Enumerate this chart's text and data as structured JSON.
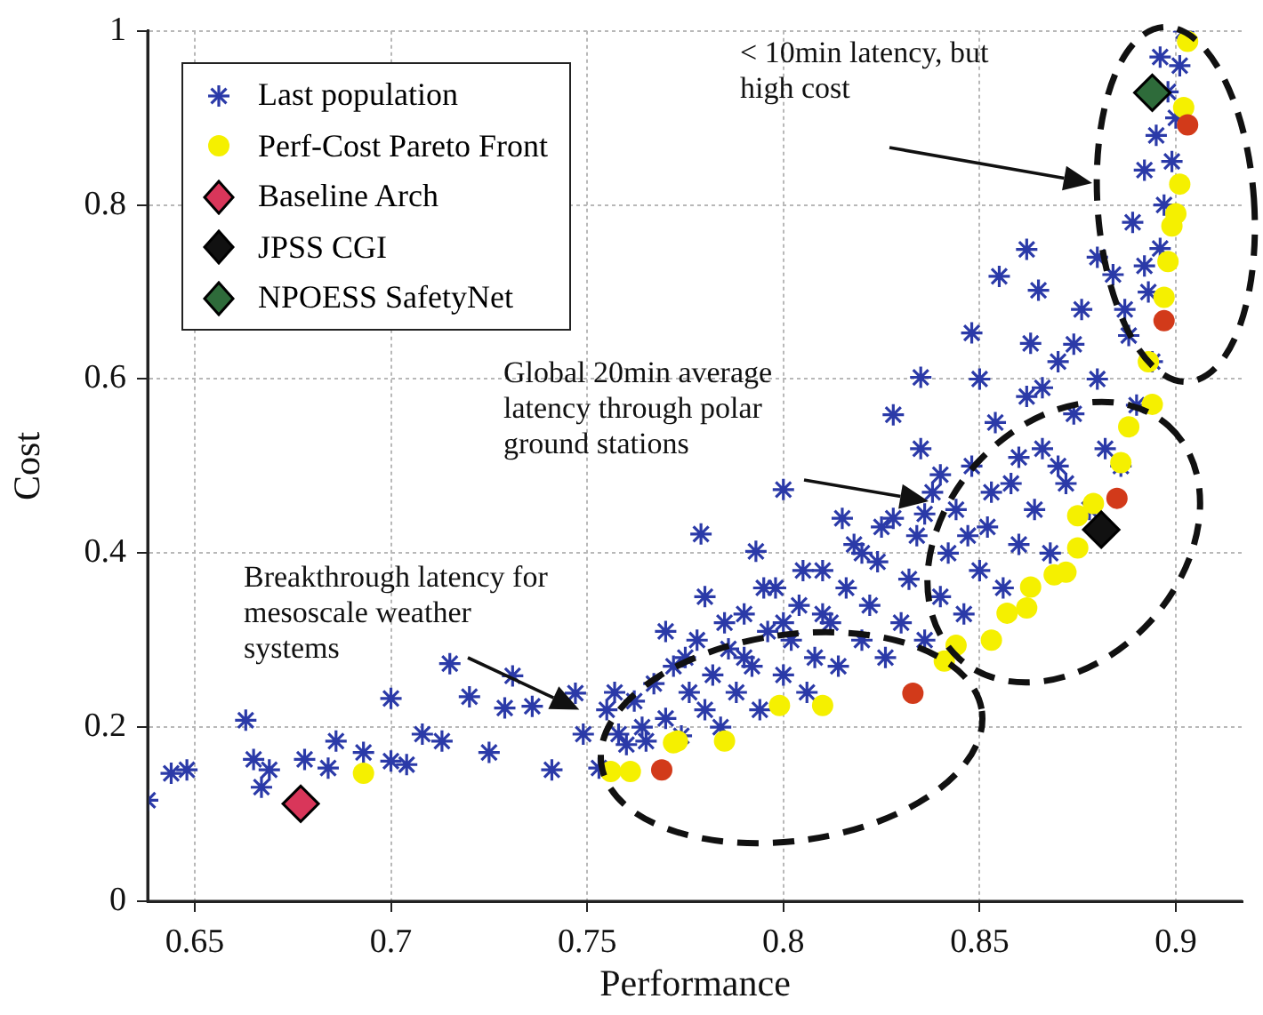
{
  "chart_data": {
    "type": "scatter",
    "xlabel": "Performance",
    "ylabel": "Cost",
    "xlim": [
      0.638,
      0.917
    ],
    "ylim": [
      0,
      1
    ],
    "xticks": [
      0.65,
      0.7,
      0.75,
      0.8,
      0.85,
      0.9
    ],
    "yticks": [
      0,
      0.2,
      0.4,
      0.6,
      0.8,
      1
    ],
    "grid": true,
    "legend": "top left",
    "annotations": [
      "< 10min latency, but high cost",
      "Global 20min average latency through polar ground stations",
      {
        "text": "Breakthrough latency for mesoscale weather systems",
        "x": 0.748,
        "y": 0.22
      }
    ],
    "series": [
      {
        "name": "Last population",
        "color": "#2b3aa8",
        "marker": "cross",
        "x": [
          0.638,
          0.644,
          0.648,
          0.663,
          0.665,
          0.667,
          0.669,
          0.678,
          0.684,
          0.686,
          0.693,
          0.7,
          0.7,
          0.704,
          0.708,
          0.713,
          0.715,
          0.72,
          0.725,
          0.729,
          0.731,
          0.736,
          0.741,
          0.747,
          0.749,
          0.753,
          0.758,
          0.765,
          0.77,
          0.755,
          0.757,
          0.76,
          0.762,
          0.764,
          0.767,
          0.77,
          0.772,
          0.774,
          0.776,
          0.778,
          0.78,
          0.782,
          0.784,
          0.786,
          0.788,
          0.79,
          0.792,
          0.794,
          0.796,
          0.798,
          0.8,
          0.802,
          0.804,
          0.806,
          0.808,
          0.81,
          0.812,
          0.814,
          0.816,
          0.818,
          0.82,
          0.822,
          0.824,
          0.826,
          0.828,
          0.83,
          0.832,
          0.834,
          0.836,
          0.838,
          0.84,
          0.842,
          0.844,
          0.846,
          0.848,
          0.85,
          0.852,
          0.854,
          0.856,
          0.858,
          0.86,
          0.862,
          0.864,
          0.866,
          0.868,
          0.87,
          0.872,
          0.874,
          0.876,
          0.878,
          0.88,
          0.882,
          0.884,
          0.886,
          0.888,
          0.889,
          0.89,
          0.892,
          0.893,
          0.894,
          0.895,
          0.896,
          0.897,
          0.898,
          0.899,
          0.9,
          0.901,
          0.902,
          0.896,
          0.892,
          0.887,
          0.88,
          0.874,
          0.87,
          0.866,
          0.86,
          0.853,
          0.847,
          0.84,
          0.835,
          0.836,
          0.825,
          0.82,
          0.815,
          0.81,
          0.805,
          0.8,
          0.795,
          0.79,
          0.785,
          0.78,
          0.775,
          0.862,
          0.855,
          0.865,
          0.848,
          0.863,
          0.835,
          0.85,
          0.828,
          0.8,
          0.779,
          0.793
        ],
        "values": [
          0.116,
          0.147,
          0.151,
          0.208,
          0.163,
          0.131,
          0.151,
          0.163,
          0.153,
          0.184,
          0.171,
          0.233,
          0.161,
          0.157,
          0.192,
          0.184,
          0.273,
          0.235,
          0.171,
          0.222,
          0.259,
          0.224,
          0.151,
          0.239,
          0.192,
          0.153,
          0.192,
          0.184,
          0.31,
          0.22,
          0.24,
          0.18,
          0.23,
          0.2,
          0.25,
          0.21,
          0.27,
          0.19,
          0.24,
          0.3,
          0.22,
          0.26,
          0.2,
          0.29,
          0.24,
          0.33,
          0.27,
          0.22,
          0.31,
          0.36,
          0.26,
          0.3,
          0.34,
          0.24,
          0.28,
          0.38,
          0.32,
          0.27,
          0.36,
          0.41,
          0.3,
          0.34,
          0.39,
          0.28,
          0.44,
          0.32,
          0.37,
          0.42,
          0.3,
          0.47,
          0.35,
          0.4,
          0.45,
          0.33,
          0.5,
          0.38,
          0.43,
          0.55,
          0.36,
          0.48,
          0.41,
          0.58,
          0.45,
          0.52,
          0.4,
          0.62,
          0.48,
          0.56,
          0.68,
          0.45,
          0.6,
          0.52,
          0.72,
          0.5,
          0.65,
          0.78,
          0.57,
          0.84,
          0.7,
          0.62,
          0.88,
          0.75,
          0.8,
          0.93,
          0.85,
          0.9,
          0.96,
          1.0,
          0.97,
          0.73,
          0.68,
          0.74,
          0.64,
          0.5,
          0.59,
          0.51,
          0.47,
          0.42,
          0.49,
          0.52,
          0.445,
          0.43,
          0.4,
          0.44,
          0.33,
          0.38,
          0.32,
          0.36,
          0.28,
          0.32,
          0.35,
          0.28,
          0.749,
          0.718,
          0.702,
          0.653,
          0.641,
          0.602,
          0.6,
          0.559,
          0.473,
          0.422,
          0.402
        ]
      },
      {
        "name": "Perf-Cost Pareto Front",
        "color": "#f5f000",
        "marker": "circle",
        "x": [
          0.693,
          0.756,
          0.761,
          0.772,
          0.773,
          0.785,
          0.799,
          0.81,
          0.841,
          0.844,
          0.853,
          0.857,
          0.862,
          0.863,
          0.869,
          0.872,
          0.875,
          0.875,
          0.879,
          0.886,
          0.888,
          0.894,
          0.893,
          0.897,
          0.898,
          0.899,
          0.9,
          0.901,
          0.902,
          0.903
        ],
        "values": [
          0.147,
          0.149,
          0.149,
          0.182,
          0.184,
          0.184,
          0.225,
          0.225,
          0.276,
          0.294,
          0.3,
          0.331,
          0.337,
          0.361,
          0.375,
          0.378,
          0.406,
          0.443,
          0.457,
          0.504,
          0.545,
          0.571,
          0.62,
          0.694,
          0.735,
          0.776,
          0.79,
          0.824,
          0.912,
          0.988
        ]
      },
      {
        "color": "#d23a1a",
        "marker": "circle",
        "x": [
          0.769,
          0.833,
          0.885,
          0.897,
          0.903
        ],
        "values": [
          0.151,
          0.239,
          0.463,
          0.667,
          0.892
        ]
      },
      {
        "name": "Baseline Arch",
        "color": "#d9365a",
        "marker": "diamond",
        "x": [
          0.677
        ],
        "values": [
          0.112
        ]
      },
      {
        "name": "JPSS CGI",
        "color": "#111111",
        "marker": "diamond",
        "x": [
          0.881
        ],
        "values": [
          0.427
        ]
      },
      {
        "name": "NPOESS SafetyNet",
        "color": "#2e6b3a",
        "marker": "diamond",
        "x": [
          0.894
        ],
        "values": [
          0.929
        ]
      }
    ]
  }
}
